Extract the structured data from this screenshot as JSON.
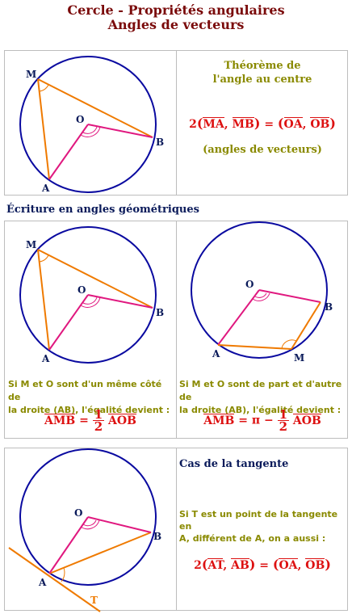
{
  "title_line1": "Cercle - Propriétés angulaires",
  "title_line2": "Angles de vecteurs",
  "panel1": {
    "theorem_line1": "Théorème de",
    "theorem_line2": "l'angle au centre",
    "formula_coef": "2",
    "formula_lhs_v1": "MA",
    "formula_lhs_v2": "MB",
    "formula_eq": "=",
    "formula_rhs_v1": "OA",
    "formula_rhs_v2": "OB",
    "note": "(angles de vecteurs)",
    "labels": {
      "M": "M",
      "O": "O",
      "A": "A",
      "B": "B"
    }
  },
  "section2_heading": "Écriture en angles géométriques",
  "panel2": {
    "left_labels": {
      "M": "M",
      "O": "O",
      "A": "A",
      "B": "B"
    },
    "right_labels": {
      "O": "O",
      "B": "B",
      "A": "A",
      "M": "M"
    },
    "left_text_line1": "Si M et O sont d'un même côté de",
    "left_text_line2": "la droite (AB), l'égalité devient :",
    "left_formula_lhs": "AMB",
    "left_formula_eq": "=",
    "left_formula_num": "1",
    "left_formula_den": "2",
    "left_formula_rhs": "AOB",
    "right_text_line1": "Si M et O sont de part et d'autre de",
    "right_text_line2": "la droite (AB), l'égalité devient :",
    "right_formula_lhs": "AMB",
    "right_formula_eq": "= π −",
    "right_formula_num": "1",
    "right_formula_den": "2",
    "right_formula_rhs": "AOB"
  },
  "panel3": {
    "labels": {
      "O": "O",
      "B": "B",
      "A": "A",
      "T": "T"
    },
    "heading": "Cas de la tangente",
    "text_line1": "Si T est un point de la tangente en",
    "text_line2": "A, différent de A, on a aussi :",
    "formula_coef": "2",
    "formula_lhs_v1": "AT",
    "formula_lhs_v2": "AB",
    "formula_eq": "=",
    "formula_rhs_v1": "OA",
    "formula_rhs_v2": "OB"
  },
  "colors": {
    "circle": "#0a0aa0",
    "magenta": "#e0187f",
    "orange": "#ef7a00",
    "title": "#7a0a0a",
    "olive": "#8a8a00",
    "red": "#dd1111"
  }
}
